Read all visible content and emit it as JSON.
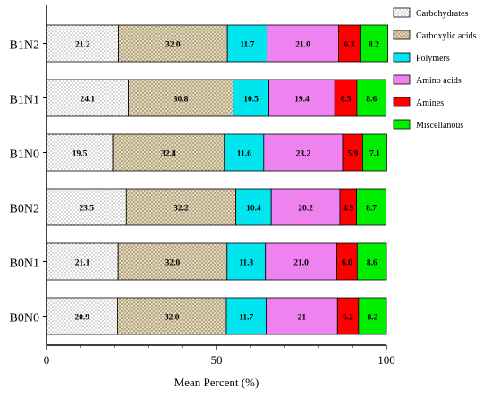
{
  "chart_data": {
    "type": "bar",
    "orientation": "horizontal",
    "stacked": true,
    "xlabel": "Mean Percent (%)",
    "ylabel": "",
    "xlim": [
      0,
      100
    ],
    "xticks": [
      "0",
      "50",
      "100"
    ],
    "grid": false,
    "legend_position": "right",
    "categories": [
      "B1N2",
      "B1N1",
      "B1N0",
      "B0N2",
      "B0N1",
      "B0N0"
    ],
    "series": [
      {
        "name": "Carbohydrates",
        "fill": "#ffffff",
        "pattern": "dots",
        "values": [
          21.2,
          24.1,
          19.5,
          23.5,
          21.1,
          20.9
        ],
        "labels": [
          "21.2",
          "24.1",
          "19.5",
          "23.5",
          "21.1",
          "20.9"
        ]
      },
      {
        "name": "Carboxylic acids",
        "fill": "#e8dcc0",
        "pattern": "crosshatch",
        "values": [
          32.0,
          30.8,
          32.8,
          32.2,
          32.0,
          32.0
        ],
        "labels": [
          "32.0",
          "30.8",
          "32.8",
          "32.2",
          "32.0",
          "32.0"
        ]
      },
      {
        "name": "Polymers",
        "fill": "#00e5ee",
        "pattern": "none",
        "values": [
          11.7,
          10.5,
          11.6,
          10.4,
          11.3,
          11.7
        ],
        "labels": [
          "11.7",
          "10.5",
          "11.6",
          "10.4",
          "11.3",
          "11.7"
        ]
      },
      {
        "name": "Amino acids",
        "fill": "#ee82ee",
        "pattern": "none",
        "values": [
          21.0,
          19.4,
          23.2,
          20.2,
          21.0,
          21
        ],
        "labels": [
          "21.0",
          "19.4",
          "23.2",
          "20.2",
          "21.0",
          "21"
        ]
      },
      {
        "name": "Amines",
        "fill": "#ff0000",
        "pattern": "none",
        "values": [
          6.3,
          6.5,
          5.9,
          4.9,
          6.0,
          6.2
        ],
        "labels": [
          "6.3",
          "6.5",
          "5.9",
          "4.9",
          "6.0",
          "6.2"
        ]
      },
      {
        "name": "Miscellaneous",
        "legend_label": "Miscellanous",
        "fill": "#00ee00",
        "pattern": "none",
        "values": [
          8.2,
          8.6,
          7.1,
          8.7,
          8.6,
          8.2
        ],
        "labels": [
          "8.2",
          "8.6",
          "7.1",
          "8.7",
          "8.6",
          "8.2"
        ]
      }
    ]
  }
}
